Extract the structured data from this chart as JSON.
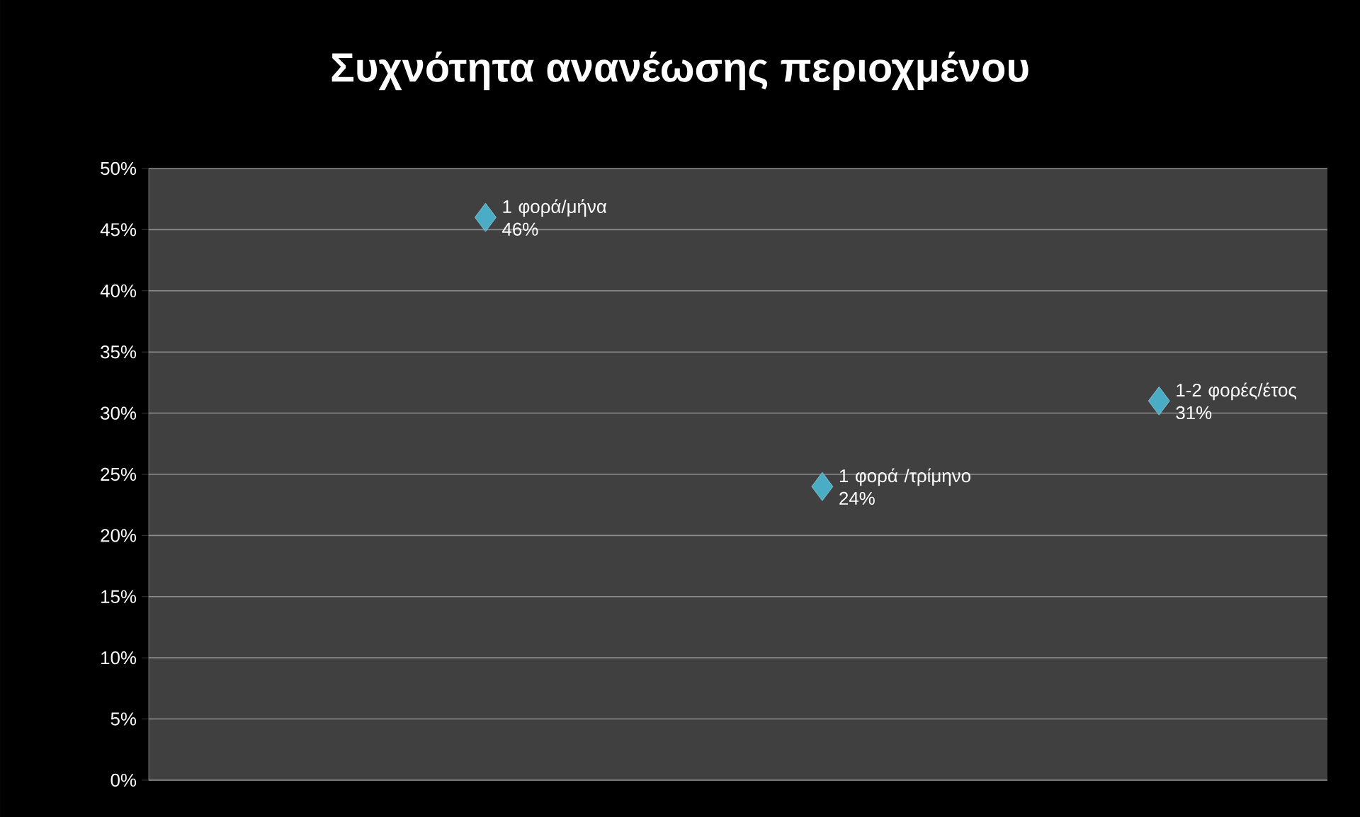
{
  "chart_data": {
    "type": "scatter",
    "title": "Συχνότητα ανανέωσης περιοχμένου",
    "categories": [
      null,
      null,
      null
    ],
    "values": [
      46,
      24,
      31
    ],
    "color": "#4bacc6",
    "marker": "diamond",
    "value_labels": [
      "1 φορά/μήνα 46%",
      "1 φορά /τρίμηνο 24%",
      "1-2 φορές/έτος 31%"
    ],
    "ylim": [
      0,
      50
    ],
    "yticks": [
      {
        "value": 0,
        "label": "0%"
      },
      {
        "value": 5,
        "label": "5%"
      },
      {
        "value": 10,
        "label": "10%"
      },
      {
        "value": 15,
        "label": "15%"
      },
      {
        "value": 20,
        "label": "20%"
      },
      {
        "value": 25,
        "label": "25%"
      },
      {
        "value": 30,
        "label": "30%"
      },
      {
        "value": 35,
        "label": "35%"
      },
      {
        "value": 40,
        "label": "40%"
      },
      {
        "value": 45,
        "label": "45%"
      },
      {
        "value": 50,
        "label": "50%"
      }
    ],
    "grid": "y",
    "tick_labels": "y"
  }
}
